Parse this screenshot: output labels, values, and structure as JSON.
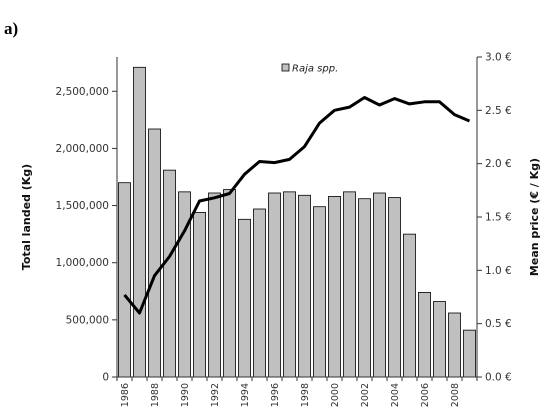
{
  "chart_data": {
    "type": "bar",
    "panel_label": "a)",
    "title": "",
    "ylabel": "Total landed (Kg)",
    "y2label": "Mean price (€ / Kg)",
    "ylim": [
      0,
      2800000
    ],
    "y2lim": [
      0,
      3.0
    ],
    "yticks": [
      "0",
      "500,000",
      "1,000,000",
      "1,500,000",
      "2,000,000",
      "2,500,000"
    ],
    "y2ticks": [
      "0.0 €",
      "0.5 €",
      "1.0 €",
      "1.5 €",
      "2.0 €",
      "2.5 €",
      "3.0 €"
    ],
    "categories": [
      "1986",
      "1987",
      "1988",
      "1989",
      "1990",
      "1991",
      "1992",
      "1993",
      "1994",
      "1995",
      "1996",
      "1997",
      "1998",
      "1999",
      "2000",
      "2001",
      "2002",
      "2003",
      "2004",
      "2005",
      "2006",
      "2007",
      "2008",
      "2009"
    ],
    "xtick_labels": [
      "1986",
      "1988",
      "1990",
      "1992",
      "1994",
      "1996",
      "1998",
      "2000",
      "2002",
      "2004",
      "2006",
      "2008"
    ],
    "legend_placement": "top-center",
    "series": [
      {
        "name": "Raja spp.",
        "kind": "bar",
        "axis": "left",
        "color": "#c0c0c0",
        "values": [
          1700000,
          2710000,
          2170000,
          1810000,
          1620000,
          1440000,
          1610000,
          1640000,
          1380000,
          1470000,
          1610000,
          1620000,
          1590000,
          1490000,
          1580000,
          1620000,
          1560000,
          1610000,
          1570000,
          1250000,
          740000,
          660000,
          560000,
          410000
        ]
      },
      {
        "kind": "line",
        "axis": "right",
        "color": "#000000",
        "values": [
          0.77,
          0.6,
          0.95,
          1.13,
          1.37,
          1.65,
          1.68,
          1.72,
          1.9,
          2.02,
          2.01,
          2.04,
          2.16,
          2.38,
          2.5,
          2.53,
          2.62,
          2.55,
          2.61,
          2.56,
          2.58,
          2.58,
          2.46,
          2.4
        ]
      }
    ]
  }
}
